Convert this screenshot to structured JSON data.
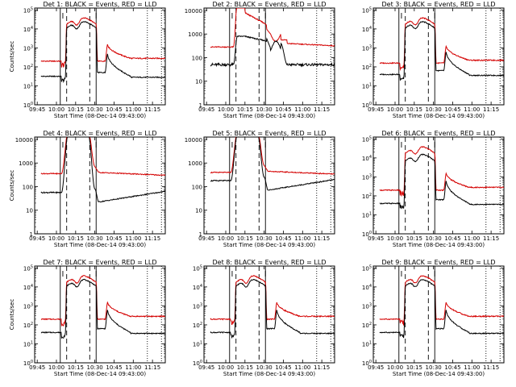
{
  "figure": {
    "background": "#ffffff",
    "events_color": "#000000",
    "lld_color": "#d40000"
  },
  "chart_data": [
    {
      "type": "line",
      "title": "Det 1: BLACK = Events, RED = LLD",
      "xlabel": "Start Time (08-Dec-14 09:43:00)",
      "ylabel": "Counts/sec",
      "log_y": true,
      "x_ticks": [
        "09:45",
        "10:00",
        "10:15",
        "10:30",
        "10:45",
        "11:00",
        "11:15"
      ],
      "y_ticks": [
        "10^0",
        "10^1",
        "10^2",
        "10^3",
        "10^4",
        "10^5"
      ],
      "ylim_log10": [
        0,
        5.1
      ],
      "key": "vsplit",
      "bg_events_log10": 1.5,
      "bg_lld_log10": 2.3,
      "peak_lld_log10": 4.6,
      "peak_events_log10": 4.5,
      "series": [
        {
          "name": "BLACK = Events",
          "color": "#000000"
        },
        {
          "name": "RED = LLD",
          "color": "#d40000"
        }
      ]
    },
    {
      "type": "line",
      "title": "Det 2: BLACK = Events, RED = LLD",
      "xlabel": "Start Time (08-Dec-14 09:43:00)",
      "ylabel": "",
      "log_y": true,
      "x_ticks": [
        "09:45",
        "10:00",
        "10:15",
        "10:30",
        "10:45",
        "11:00",
        "11:15"
      ],
      "y_ticks": [
        "1",
        "10",
        "100",
        "1000",
        "10000"
      ],
      "ylim_log10": [
        0,
        4.1
      ],
      "key": "dip",
      "bg_events_log10": 1.7,
      "bg_lld_log10": 2.45,
      "peak_lld_log10": 4.3,
      "peak_events_log10": 2.9,
      "series": [
        {
          "name": "BLACK = Events",
          "color": "#000000"
        },
        {
          "name": "RED = LLD",
          "color": "#d40000"
        }
      ]
    },
    {
      "type": "line",
      "title": "Det 3: BLACK = Events, RED = LLD",
      "xlabel": "Start Time (08-Dec-14 09:43:00)",
      "ylabel": "",
      "log_y": true,
      "x_ticks": [
        "09:45",
        "10:00",
        "10:15",
        "10:30",
        "10:45",
        "11:00",
        "11:15"
      ],
      "y_ticks": [
        "10^0",
        "10^1",
        "10^2",
        "10^3",
        "10^4",
        "10^5"
      ],
      "ylim_log10": [
        0,
        5.1
      ],
      "key": "vsplit",
      "bg_events_log10": 1.6,
      "bg_lld_log10": 2.2,
      "peak_lld_log10": 4.6,
      "peak_events_log10": 4.5,
      "series": [
        {
          "name": "BLACK = Events",
          "color": "#000000"
        },
        {
          "name": "RED = LLD",
          "color": "#d40000"
        }
      ]
    },
    {
      "type": "line",
      "title": "Det 4: BLACK = Events, RED = LLD",
      "xlabel": "Start Time (08-Dec-14 09:43:00)",
      "ylabel": "Counts/sec",
      "log_y": true,
      "x_ticks": [
        "09:45",
        "10:00",
        "10:15",
        "10:30",
        "10:45",
        "11:00",
        "11:15"
      ],
      "y_ticks": [
        "1",
        "10",
        "100",
        "1000",
        "10000"
      ],
      "ylim_log10": [
        0,
        4.1
      ],
      "key": "sat",
      "bg_events_log10": 1.75,
      "bg_lld_log10": 2.55,
      "peak_lld_log10": 4.3,
      "peak_events_log10": 4.2,
      "series": [
        {
          "name": "BLACK = Events",
          "color": "#000000"
        },
        {
          "name": "RED = LLD",
          "color": "#d40000"
        }
      ]
    },
    {
      "type": "line",
      "title": "Det 5: BLACK = Events, RED = LLD",
      "xlabel": "Start Time (08-Dec-14 09:43:00)",
      "ylabel": "",
      "log_y": true,
      "x_ticks": [
        "09:45",
        "10:00",
        "10:15",
        "10:30",
        "10:45",
        "11:00",
        "11:15"
      ],
      "y_ticks": [
        "1",
        "10",
        "100",
        "1000",
        "10000"
      ],
      "ylim_log10": [
        0,
        4.1
      ],
      "key": "sat",
      "bg_events_log10": 2.25,
      "bg_lld_log10": 2.6,
      "peak_lld_log10": 4.3,
      "peak_events_log10": 4.2,
      "series": [
        {
          "name": "BLACK = Events",
          "color": "#000000"
        },
        {
          "name": "RED = LLD",
          "color": "#d40000"
        }
      ]
    },
    {
      "type": "line",
      "title": "Det 6: BLACK = Events, RED = LLD",
      "xlabel": "Start Time (08-Dec-14 09:43:00)",
      "ylabel": "",
      "log_y": true,
      "x_ticks": [
        "09:45",
        "10:00",
        "10:15",
        "10:30",
        "10:45",
        "11:00",
        "11:15"
      ],
      "y_ticks": [
        "10^0",
        "10^1",
        "10^2",
        "10^3",
        "10^4",
        "10^5"
      ],
      "ylim_log10": [
        0,
        5.1
      ],
      "key": "vsplit",
      "bg_events_log10": 1.6,
      "bg_lld_log10": 2.3,
      "peak_lld_log10": 4.6,
      "peak_events_log10": 4.3,
      "series": [
        {
          "name": "BLACK = Events",
          "color": "#000000"
        },
        {
          "name": "RED = LLD",
          "color": "#d40000"
        }
      ]
    },
    {
      "type": "line",
      "title": "Det 7: BLACK = Events, RED = LLD",
      "xlabel": "Start Time (08-Dec-14 09:43:00)",
      "ylabel": "Counts/sec",
      "log_y": true,
      "x_ticks": [
        "09:45",
        "10:00",
        "10:15",
        "10:30",
        "10:45",
        "11:00",
        "11:15"
      ],
      "y_ticks": [
        "10^0",
        "10^1",
        "10^2",
        "10^3",
        "10^4",
        "10^5"
      ],
      "ylim_log10": [
        0,
        5.1
      ],
      "key": "vsplit",
      "bg_events_log10": 1.6,
      "bg_lld_log10": 2.3,
      "peak_lld_log10": 4.6,
      "peak_events_log10": 4.5,
      "series": [
        {
          "name": "BLACK = Events",
          "color": "#000000"
        },
        {
          "name": "RED = LLD",
          "color": "#d40000"
        }
      ]
    },
    {
      "type": "line",
      "title": "Det 8: BLACK = Events, RED = LLD",
      "xlabel": "Start Time (08-Dec-14 09:43:00)",
      "ylabel": "",
      "log_y": true,
      "x_ticks": [
        "09:45",
        "10:00",
        "10:15",
        "10:30",
        "10:45",
        "11:00",
        "11:15"
      ],
      "y_ticks": [
        "10^0",
        "10^1",
        "10^2",
        "10^3",
        "10^4",
        "10^5"
      ],
      "ylim_log10": [
        0,
        5.1
      ],
      "key": "vsplit",
      "bg_events_log10": 1.6,
      "bg_lld_log10": 2.3,
      "peak_lld_log10": 4.6,
      "peak_events_log10": 4.5,
      "series": [
        {
          "name": "BLACK = Events",
          "color": "#000000"
        },
        {
          "name": "RED = LLD",
          "color": "#d40000"
        }
      ]
    },
    {
      "type": "line",
      "title": "Det 9: BLACK = Events, RED = LLD",
      "xlabel": "Start Time (08-Dec-14 09:43:00)",
      "ylabel": "",
      "log_y": true,
      "x_ticks": [
        "09:45",
        "10:00",
        "10:15",
        "10:30",
        "10:45",
        "11:00",
        "11:15"
      ],
      "y_ticks": [
        "10^0",
        "10^1",
        "10^2",
        "10^3",
        "10^4",
        "10^5"
      ],
      "ylim_log10": [
        0,
        5.1
      ],
      "key": "vsplit",
      "bg_events_log10": 1.6,
      "bg_lld_log10": 2.3,
      "peak_lld_log10": 4.6,
      "peak_events_log10": 4.5,
      "series": [
        {
          "name": "BLACK = Events",
          "color": "#000000"
        },
        {
          "name": "RED = LLD",
          "color": "#d40000"
        }
      ]
    }
  ]
}
